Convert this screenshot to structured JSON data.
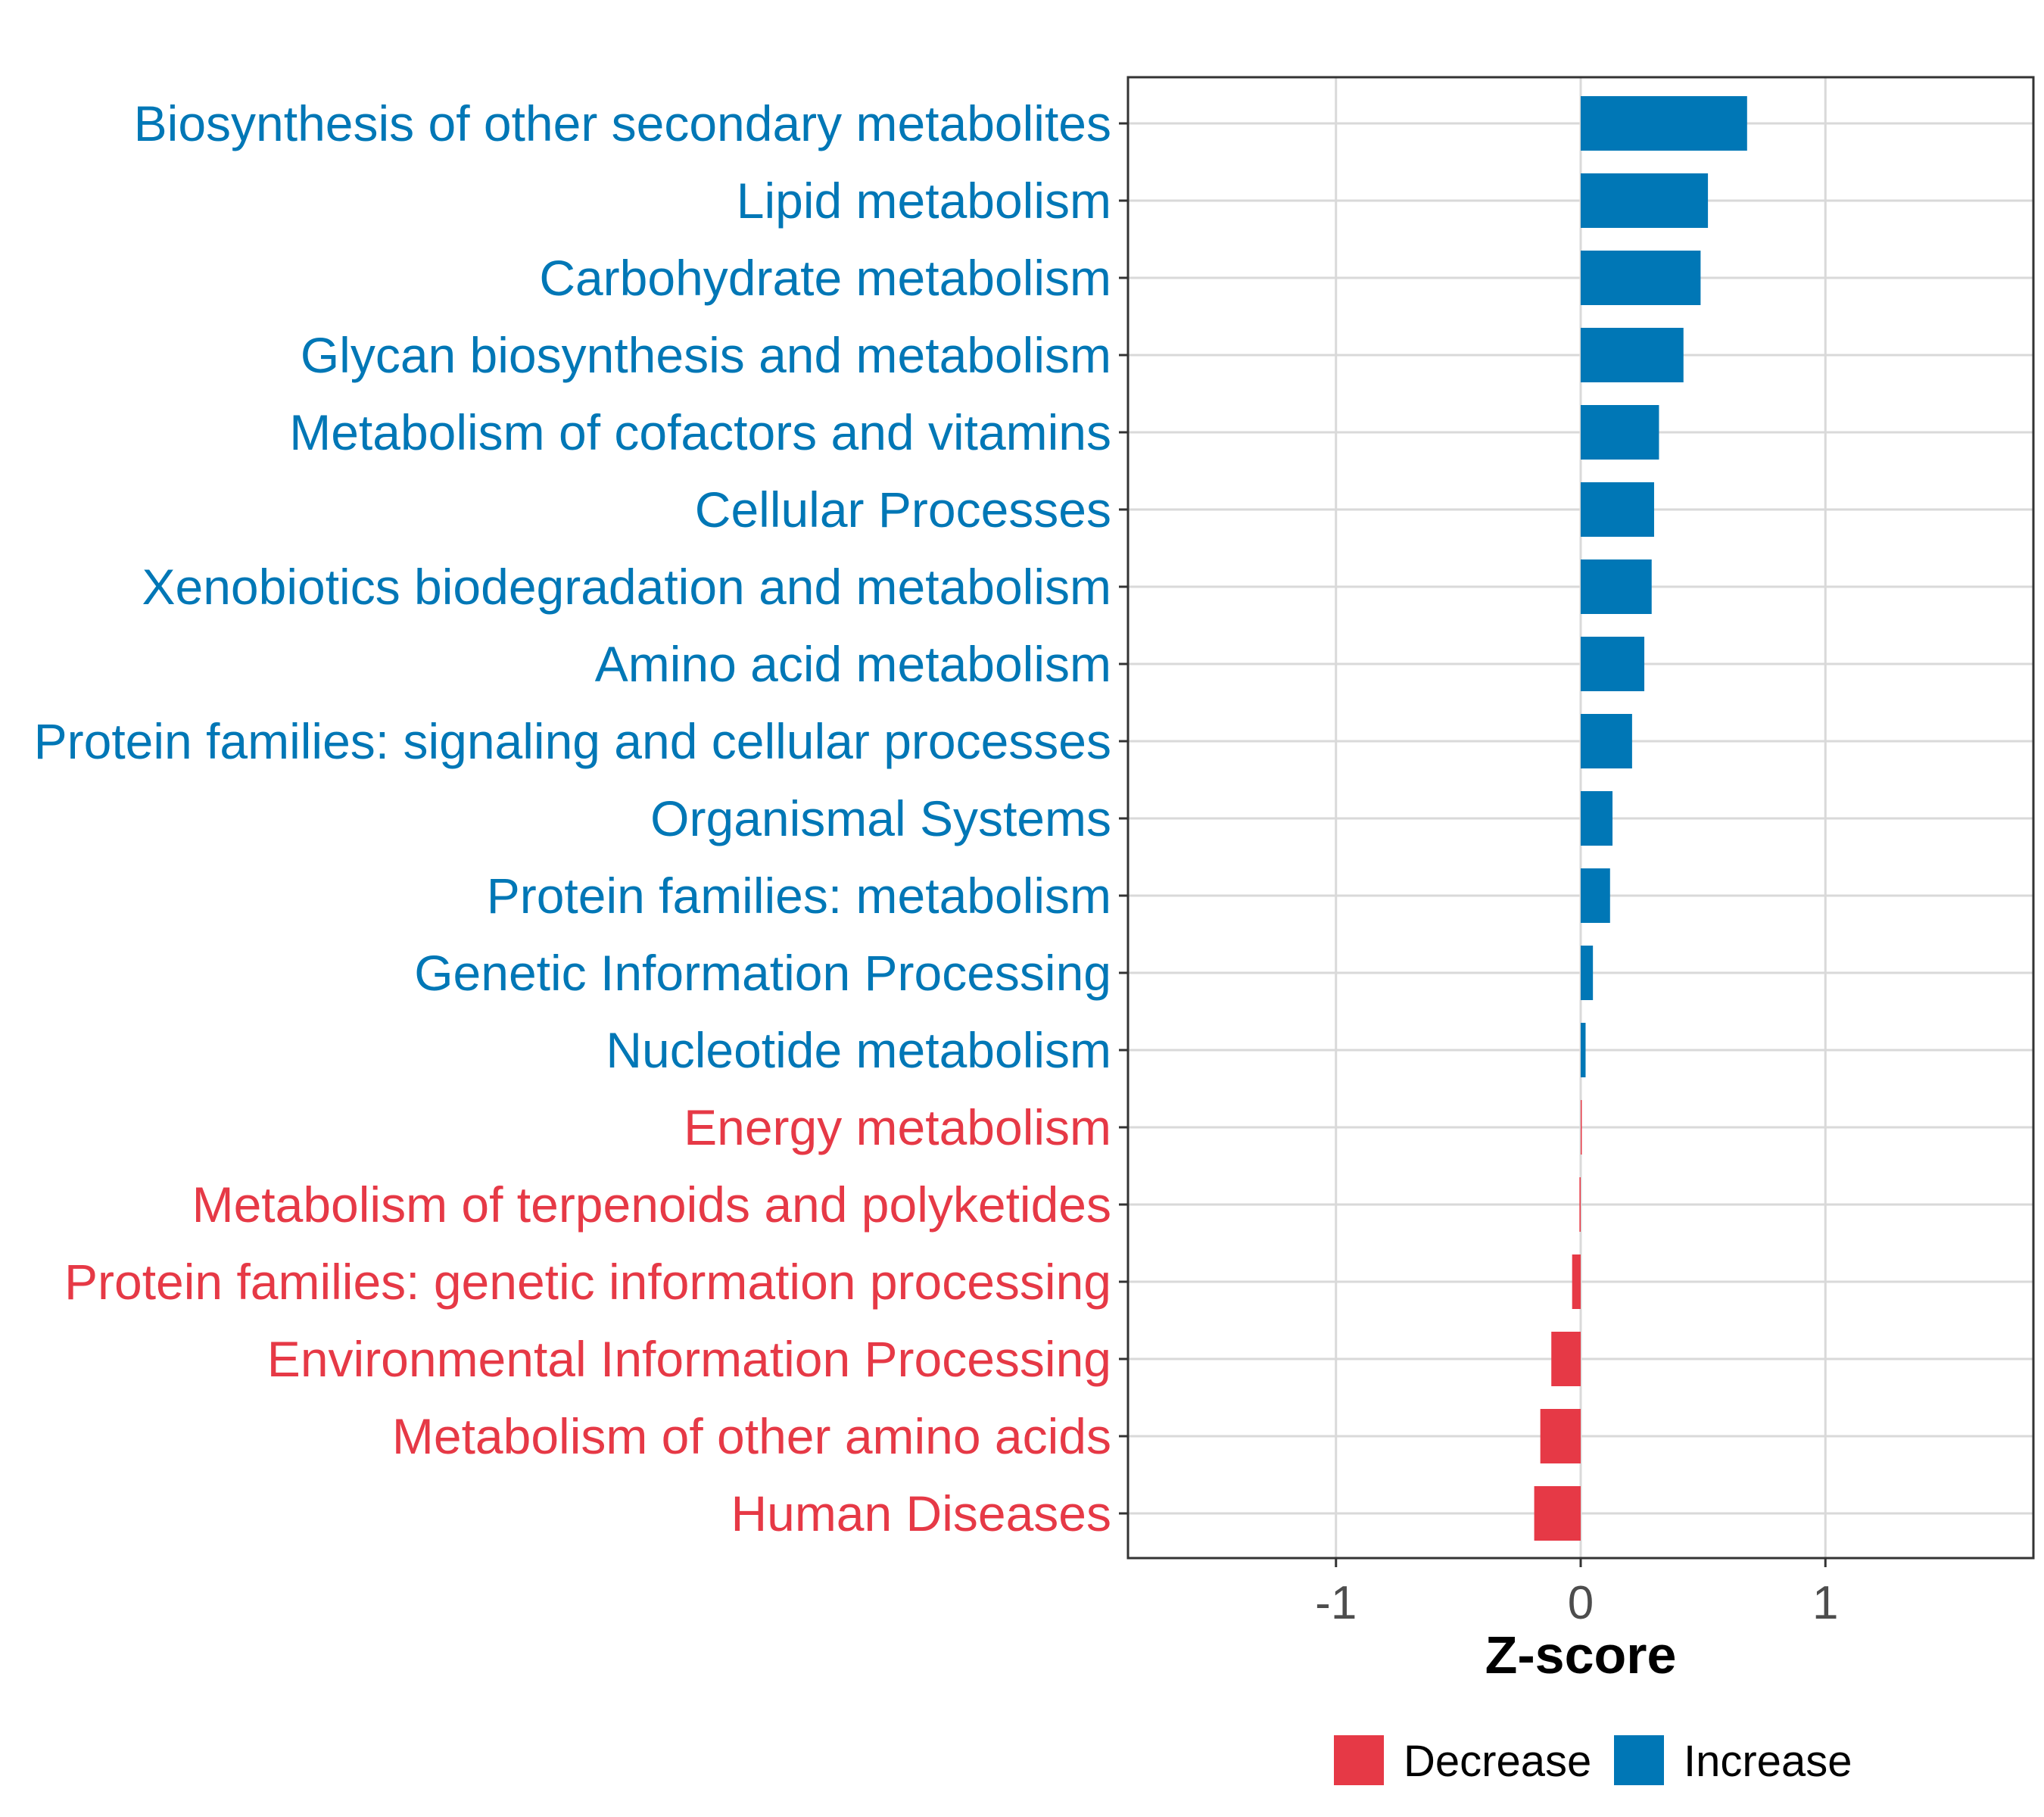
{
  "chart_data": {
    "type": "bar",
    "orientation": "horizontal",
    "categories": [
      "Biosynthesis of other secondary metabolites",
      "Lipid metabolism",
      "Carbohydrate metabolism",
      "Glycan biosynthesis and metabolism",
      "Metabolism of cofactors and vitamins",
      "Cellular Processes",
      "Xenobiotics biodegradation and metabolism",
      "Amino acid metabolism",
      "Protein families: signaling and cellular processes",
      "Organismal Systems",
      "Protein families: metabolism",
      "Genetic Information Processing",
      "Nucleotide metabolism",
      "Energy metabolism",
      "Metabolism of terpenoids and polyketides",
      "Protein families: genetic information processing",
      "Environmental Information Processing",
      "Metabolism of other amino acids",
      "Human Diseases"
    ],
    "values": [
      0.68,
      0.52,
      0.49,
      0.42,
      0.32,
      0.3,
      0.29,
      0.26,
      0.21,
      0.13,
      0.12,
      0.05,
      0.02,
      0.0,
      -0.005,
      -0.035,
      -0.12,
      -0.165,
      -0.19
    ],
    "groups": [
      "Increase",
      "Increase",
      "Increase",
      "Increase",
      "Increase",
      "Increase",
      "Increase",
      "Increase",
      "Increase",
      "Increase",
      "Increase",
      "Increase",
      "Increase",
      "Decrease",
      "Decrease",
      "Decrease",
      "Decrease",
      "Decrease",
      "Decrease"
    ],
    "xlabel": "Z-score",
    "ylabel": "",
    "xlim": [
      -1.85,
      1.85
    ],
    "xticks": [
      "-1",
      "0",
      "1"
    ],
    "xtick_values": [
      -1,
      0,
      1
    ],
    "grid": true,
    "legend": {
      "placement": "bottom",
      "entries": [
        {
          "label": "Decrease",
          "color": "#e63946"
        },
        {
          "label": "Increase",
          "color": "#0077b6"
        }
      ]
    },
    "colors": {
      "Decrease": "#e63946",
      "Increase": "#0077b6"
    }
  }
}
